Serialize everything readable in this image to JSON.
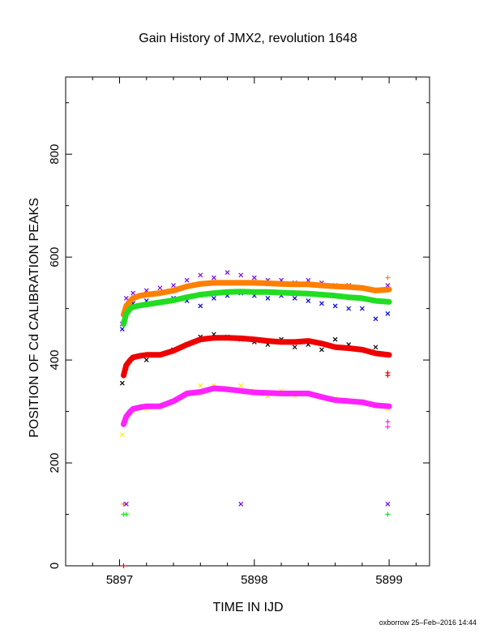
{
  "chart_data": {
    "type": "scatter",
    "title": "Gain History of JMX2, revolution 1648",
    "xlabel": "TIME IN IJD",
    "ylabel": "POSITION OF Cd CALIBRATION PEAKS",
    "xlim": [
      5896.6,
      5899.3
    ],
    "ylim": [
      0,
      950
    ],
    "x_ticks": [
      5897,
      5898,
      5899
    ],
    "x_tick_labels": [
      "5897",
      "5898",
      "5899"
    ],
    "y_ticks": [
      0,
      200,
      400,
      600,
      800
    ],
    "y_tick_labels": [
      "0",
      "200",
      "400",
      "600",
      "800"
    ],
    "x_minor_step": 0.2,
    "y_minor_step": 100,
    "grid": false,
    "legend": "none",
    "series": [
      {
        "color": "#7700ee",
        "marker": "cross",
        "kind": "scatter",
        "x": [
          5897.02,
          5897.05,
          5897.1,
          5897.2,
          5897.3,
          5897.4,
          5897.5,
          5897.6,
          5897.7,
          5897.8,
          5897.9,
          5898.0,
          5898.1,
          5898.2,
          5898.3,
          5898.4,
          5898.5,
          5898.6,
          5898.7,
          5898.8,
          5898.9,
          5898.99
        ],
        "y": [
          470,
          520,
          530,
          535,
          540,
          545,
          555,
          565,
          560,
          570,
          565,
          560,
          555,
          555,
          550,
          555,
          550,
          545,
          545,
          540,
          535,
          545
        ]
      },
      {
        "color": "#0000dd",
        "marker": "cross",
        "kind": "scatter",
        "x": [
          5897.02,
          5897.05,
          5897.1,
          5897.2,
          5897.3,
          5897.4,
          5897.5,
          5897.6,
          5897.7,
          5897.8,
          5897.9,
          5898.0,
          5898.1,
          5898.2,
          5898.3,
          5898.4,
          5898.5,
          5898.6,
          5898.7,
          5898.8,
          5898.9,
          5898.99
        ],
        "y": [
          460,
          495,
          510,
          515,
          512,
          520,
          515,
          505,
          520,
          525,
          530,
          525,
          520,
          525,
          520,
          515,
          510,
          505,
          500,
          500,
          480,
          490
        ]
      },
      {
        "color": "#000000",
        "marker": "cross",
        "kind": "scatter",
        "x": [
          5897.02,
          5897.05,
          5897.1,
          5897.2,
          5897.3,
          5897.4,
          5897.5,
          5897.6,
          5897.7,
          5897.8,
          5897.9,
          5898.0,
          5898.1,
          5898.2,
          5898.3,
          5898.4,
          5898.5,
          5898.6,
          5898.7,
          5898.8,
          5898.9,
          5898.99
        ],
        "y": [
          355,
          385,
          405,
          400,
          410,
          420,
          430,
          445,
          450,
          445,
          440,
          435,
          430,
          440,
          425,
          430,
          420,
          440,
          430,
          420,
          425,
          410
        ]
      },
      {
        "color": "#ffee00",
        "marker": "cross",
        "kind": "scatter",
        "x": [
          5897.02,
          5897.05,
          5897.1,
          5897.2,
          5897.3,
          5897.4,
          5897.5,
          5897.6,
          5897.7,
          5897.8,
          5897.9,
          5898.0,
          5898.1,
          5898.2,
          5898.3,
          5898.4,
          5898.5,
          5898.6,
          5898.7,
          5898.8,
          5898.9,
          5898.99
        ],
        "y": [
          255,
          280,
          300,
          305,
          310,
          320,
          335,
          350,
          350,
          345,
          350,
          340,
          330,
          340,
          330,
          335,
          330,
          325,
          320,
          320,
          310,
          305
        ]
      },
      {
        "color": "#ff7f00",
        "kind": "line",
        "x": [
          5897.03,
          5897.05,
          5897.08,
          5897.1,
          5897.15,
          5897.2,
          5897.3,
          5897.4,
          5897.5,
          5897.6,
          5897.7,
          5897.8,
          5897.9,
          5898.0,
          5898.1,
          5898.2,
          5898.3,
          5898.4,
          5898.5,
          5898.6,
          5898.7,
          5898.8,
          5898.9,
          5899.0
        ],
        "y": [
          488,
          505,
          515,
          520,
          525,
          527,
          530,
          535,
          543,
          548,
          550,
          550,
          550,
          550,
          549,
          548,
          547,
          547,
          545,
          543,
          542,
          540,
          535,
          537
        ]
      },
      {
        "color": "#22dd22",
        "kind": "line",
        "x": [
          5897.03,
          5897.05,
          5897.08,
          5897.1,
          5897.15,
          5897.2,
          5897.3,
          5897.4,
          5897.5,
          5897.6,
          5897.7,
          5897.8,
          5897.9,
          5898.0,
          5898.1,
          5898.2,
          5898.3,
          5898.4,
          5898.5,
          5898.6,
          5898.7,
          5898.8,
          5898.9,
          5899.0
        ],
        "y": [
          470,
          490,
          500,
          503,
          506,
          508,
          512,
          516,
          522,
          527,
          530,
          532,
          533,
          532,
          532,
          531,
          530,
          529,
          527,
          525,
          522,
          520,
          515,
          513
        ]
      },
      {
        "color": "#ee0000",
        "kind": "line",
        "x": [
          5897.03,
          5897.05,
          5897.08,
          5897.1,
          5897.15,
          5897.2,
          5897.3,
          5897.4,
          5897.5,
          5897.6,
          5897.7,
          5897.8,
          5897.9,
          5898.0,
          5898.1,
          5898.2,
          5898.3,
          5898.4,
          5898.5,
          5898.6,
          5898.7,
          5898.8,
          5898.9,
          5899.0
        ],
        "y": [
          370,
          390,
          400,
          405,
          408,
          410,
          410,
          418,
          430,
          440,
          443,
          443,
          442,
          440,
          437,
          435,
          435,
          437,
          432,
          425,
          423,
          420,
          413,
          410
        ]
      },
      {
        "color": "#ff22ff",
        "kind": "line",
        "x": [
          5897.03,
          5897.05,
          5897.08,
          5897.1,
          5897.15,
          5897.2,
          5897.3,
          5897.4,
          5897.5,
          5897.6,
          5897.7,
          5897.8,
          5897.9,
          5898.0,
          5898.1,
          5898.2,
          5898.3,
          5898.4,
          5898.5,
          5898.6,
          5898.7,
          5898.8,
          5898.9,
          5899.0
        ],
        "y": [
          275,
          290,
          300,
          305,
          308,
          310,
          310,
          320,
          335,
          338,
          345,
          343,
          340,
          337,
          336,
          335,
          335,
          335,
          328,
          322,
          320,
          318,
          312,
          310
        ]
      },
      {
        "color": "#ff7f00",
        "marker": "plus",
        "kind": "scatter",
        "x": [
          5897.03,
          5898.99
        ],
        "y": [
          120,
          560
        ]
      },
      {
        "color": "#22dd22",
        "marker": "plus",
        "kind": "scatter",
        "x": [
          5897.03,
          5897.05,
          5898.99
        ],
        "y": [
          100,
          100,
          100
        ]
      },
      {
        "color": "#ee0000",
        "marker": "plus",
        "kind": "scatter",
        "x": [
          5897.03,
          5898.99,
          5898.99
        ],
        "y": [
          0,
          375,
          370
        ]
      },
      {
        "color": "#ff22ff",
        "marker": "plus",
        "kind": "scatter",
        "x": [
          5898.99,
          5898.99
        ],
        "y": [
          280,
          270
        ]
      },
      {
        "color": "#7700ee",
        "marker": "cross",
        "kind": "scatter",
        "x": [
          5897.05,
          5897.9,
          5898.99
        ],
        "y": [
          120,
          120,
          120
        ]
      }
    ]
  },
  "footer": "oxborrow 25–Feb–2016 14:44"
}
